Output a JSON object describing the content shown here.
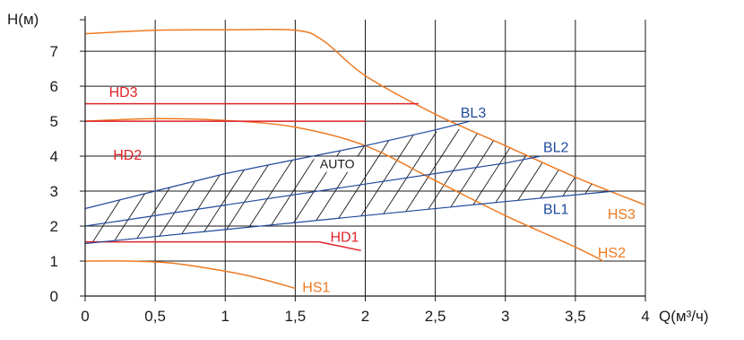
{
  "chart_data": {
    "type": "line",
    "ylabel": "H(м)",
    "xlabel": "Q(м³/ч)",
    "xlim": [
      0,
      4
    ],
    "ylim": [
      0,
      8
    ],
    "xticks": [
      0,
      0.5,
      1,
      1.5,
      2,
      2.5,
      3,
      3.5,
      4
    ],
    "xtick_labels": [
      "0",
      "0,5",
      "1",
      "1,5",
      "2",
      "2,5",
      "3",
      "3,5",
      "4"
    ],
    "yticks": [
      0,
      1,
      2,
      3,
      4,
      5,
      6,
      7
    ],
    "ytick_labels": [
      "0",
      "1",
      "2",
      "3",
      "4",
      "5",
      "6",
      "7"
    ],
    "grid": true,
    "colors": {
      "hs": "#ee7a22",
      "hd": "#e0232b",
      "bl": "#1f4a9c",
      "hatch": "#1a1a1a",
      "grid": "#1a1a1a"
    },
    "series": [
      {
        "name": "HS1",
        "group": "hs",
        "x": [
          0,
          0.3,
          0.6,
          0.9,
          1.2,
          1.5
        ],
        "y": [
          1.0,
          1.0,
          0.95,
          0.78,
          0.55,
          0.22
        ]
      },
      {
        "name": "HS2",
        "group": "hs",
        "x": [
          0,
          0.5,
          1.0,
          1.5,
          2.0,
          2.5,
          3.0,
          3.5,
          3.7
        ],
        "y": [
          5.0,
          5.07,
          5.02,
          4.83,
          4.3,
          3.3,
          2.3,
          1.4,
          1.0
        ]
      },
      {
        "name": "HS3",
        "group": "hs",
        "x": [
          0,
          0.5,
          1.0,
          1.5,
          1.7,
          2.0,
          2.5,
          3.0,
          3.5,
          4.0
        ],
        "y": [
          7.5,
          7.6,
          7.61,
          7.6,
          7.3,
          6.3,
          5.2,
          4.3,
          3.4,
          2.6
        ]
      },
      {
        "name": "HD1",
        "group": "hd",
        "x": [
          0,
          1.67,
          1.97
        ],
        "y": [
          1.55,
          1.55,
          1.3
        ]
      },
      {
        "name": "HD2",
        "group": "hd",
        "x": [
          0,
          1.5,
          2.0
        ],
        "y": [
          5.0,
          5.0,
          5.0
        ]
      },
      {
        "name": "HD3",
        "group": "hd",
        "x": [
          0,
          2.38
        ],
        "y": [
          5.5,
          5.5
        ]
      },
      {
        "name": "BL1",
        "group": "bl",
        "x": [
          0,
          1.0,
          2.0,
          3.0,
          3.78
        ],
        "y": [
          1.5,
          1.9,
          2.3,
          2.7,
          3.0
        ]
      },
      {
        "name": "BL2",
        "group": "bl",
        "x": [
          0,
          1.0,
          2.0,
          3.0,
          3.25
        ],
        "y": [
          2.0,
          2.6,
          3.2,
          3.8,
          4.0
        ]
      },
      {
        "name": "BL3",
        "group": "bl",
        "x": [
          0,
          0.5,
          1.0,
          1.5,
          2.0,
          2.5,
          2.75
        ],
        "y": [
          2.5,
          3.0,
          3.5,
          3.9,
          4.3,
          4.75,
          5.0
        ]
      }
    ],
    "labels": [
      {
        "text": "HS1",
        "group": "hs",
        "x": 1.55,
        "y": 0.12
      },
      {
        "text": "HS2",
        "group": "hs",
        "x": 3.66,
        "y": 1.1
      },
      {
        "text": "HS3",
        "group": "hs",
        "x": 3.73,
        "y": 2.2
      },
      {
        "text": "HD1",
        "group": "hd",
        "x": 1.75,
        "y": 1.55
      },
      {
        "text": "HD2",
        "group": "hd",
        "x": 0.2,
        "y": 3.9
      },
      {
        "text": "HD3",
        "group": "hd",
        "x": 0.17,
        "y": 5.7
      },
      {
        "text": "BL1",
        "group": "bl",
        "x": 3.27,
        "y": 2.35
      },
      {
        "text": "BL2",
        "group": "bl",
        "x": 3.27,
        "y": 4.12
      },
      {
        "text": "BL3",
        "group": "bl",
        "x": 2.68,
        "y": 5.1
      }
    ],
    "region_label": {
      "text": "AUTO",
      "x": 1.8,
      "y": 3.65
    }
  }
}
